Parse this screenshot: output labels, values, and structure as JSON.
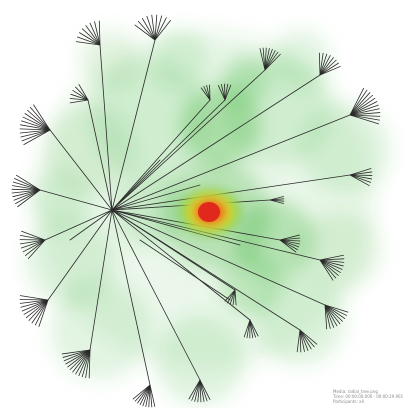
{
  "figure": {
    "kind": "radial tree with eye-tracking heatmap overlay",
    "colors": {
      "background": "#ffffff",
      "edge": "#2a2a2a",
      "heat_low": "#9fd98a",
      "heat_mid": "#3fb43a",
      "heat_high_yellow": "#f2ea2a",
      "heat_peak_red": "#e0281c"
    }
  },
  "legend": {
    "line1": "Media: radial_tree.png",
    "line2": "Time: 00:00:00.000 - 00:00:29.901",
    "line3": "Participants: all"
  }
}
